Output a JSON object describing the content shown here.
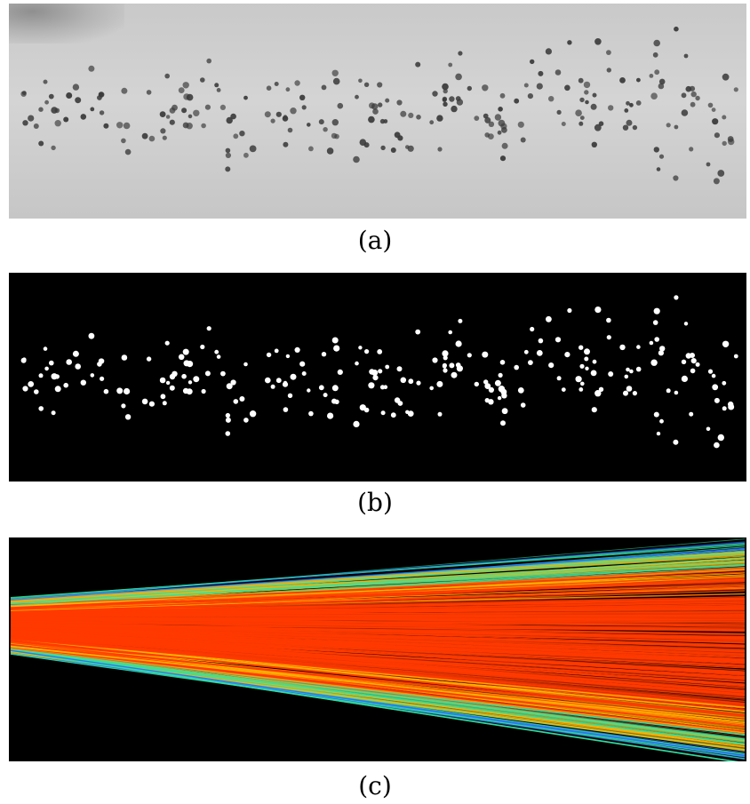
{
  "captions": {
    "a": "(a)",
    "b": "(b)",
    "c": "(c)"
  },
  "colors": {
    "raw_background": "#cfcfcf",
    "raw_particle": "#3a3a3a",
    "binary_background": "#000000",
    "binary_particle": "#ffffff",
    "tracks_background": "#000000",
    "track_core": "#ff3a00",
    "track_mid": "#ffb400",
    "track_edge": "#33e0a0",
    "track_outer": "#2f6fff"
  }
}
